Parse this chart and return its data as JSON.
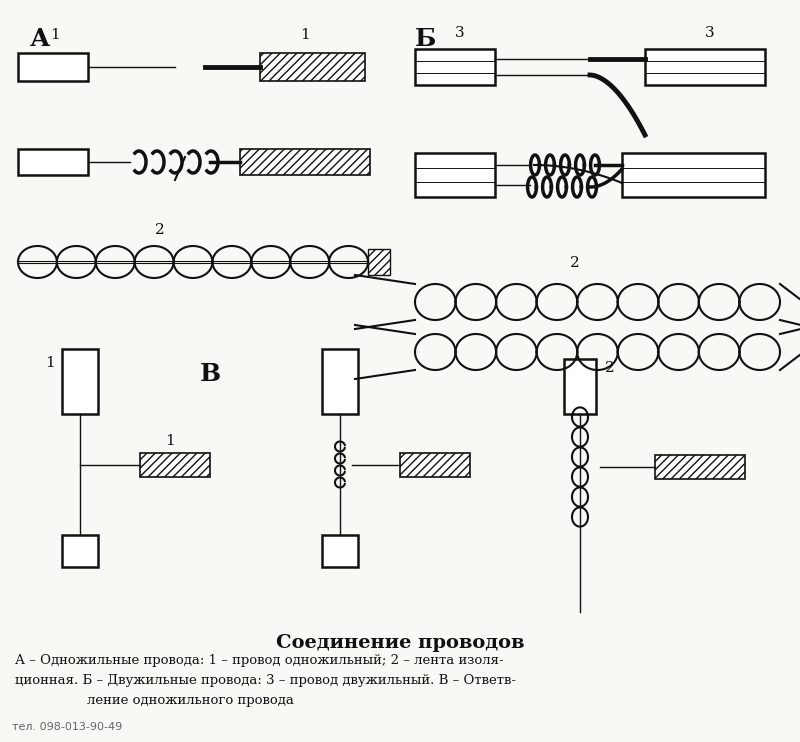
{
  "title": "Соединение проводов",
  "caption_line1": "А – Одножильные провода: 1 – провод одножильный; 2 – лента изоля-",
  "caption_line2": "ционная. Б – Двужильные провода: 3 – провод двужильный. В – Ответв-",
  "caption_line3": "ление одножильного провода",
  "phone": "тел. 098-013-90-49",
  "label_A": "А",
  "label_B": "Б",
  "label_V": "В",
  "bg_color": "#f8f8f4",
  "line_color": "#111111",
  "title_fontsize": 13,
  "caption_fontsize": 9.5,
  "label_fontsize": 14
}
